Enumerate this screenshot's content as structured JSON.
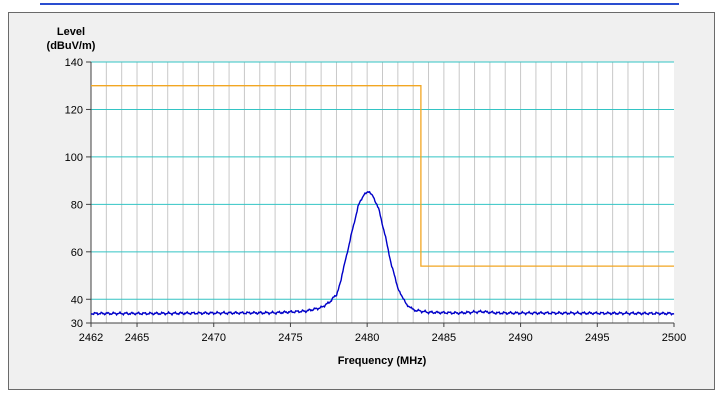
{
  "chart_data": {
    "type": "line",
    "xlabel": "Frequency (MHz)",
    "ylabel_line1": "Level",
    "ylabel_line2": "(dBuV/m)",
    "xlim": [
      2462,
      2500
    ],
    "ylim": [
      30,
      140
    ],
    "x_ticks": [
      2462,
      2465,
      2470,
      2475,
      2480,
      2485,
      2490,
      2495,
      2500
    ],
    "y_ticks": [
      30,
      40,
      60,
      80,
      100,
      120,
      140
    ],
    "grid": true,
    "colors": {
      "major_grid": "#33c4c4",
      "minor_grid": "#c8c8c8",
      "trace": "#0000c8",
      "limit": "#f2a622",
      "axis": "#404040"
    },
    "series": [
      {
        "role": "measurement",
        "x": [
          2462,
          2466,
          2470,
          2474,
          2476,
          2477,
          2477.5,
          2478,
          2478.3,
          2478.6,
          2479,
          2479.4,
          2479.8,
          2480.1,
          2480.4,
          2480.8,
          2481.2,
          2481.6,
          2482,
          2482.3,
          2482.7,
          2483,
          2484,
          2486,
          2487.5,
          2488.5,
          2492,
          2496,
          2500
        ],
        "y": [
          34,
          34,
          34.2,
          34.3,
          35,
          36.5,
          38.5,
          42,
          48,
          57,
          68,
          79,
          84.5,
          85,
          83.5,
          77,
          66,
          54,
          45,
          40.5,
          37,
          35.5,
          34.5,
          34.2,
          34.8,
          34.2,
          34.2,
          34.1,
          34
        ]
      },
      {
        "role": "limit",
        "x": [
          2462,
          2483.5,
          2483.5,
          2500
        ],
        "y": [
          130,
          130,
          54,
          54
        ]
      }
    ]
  }
}
